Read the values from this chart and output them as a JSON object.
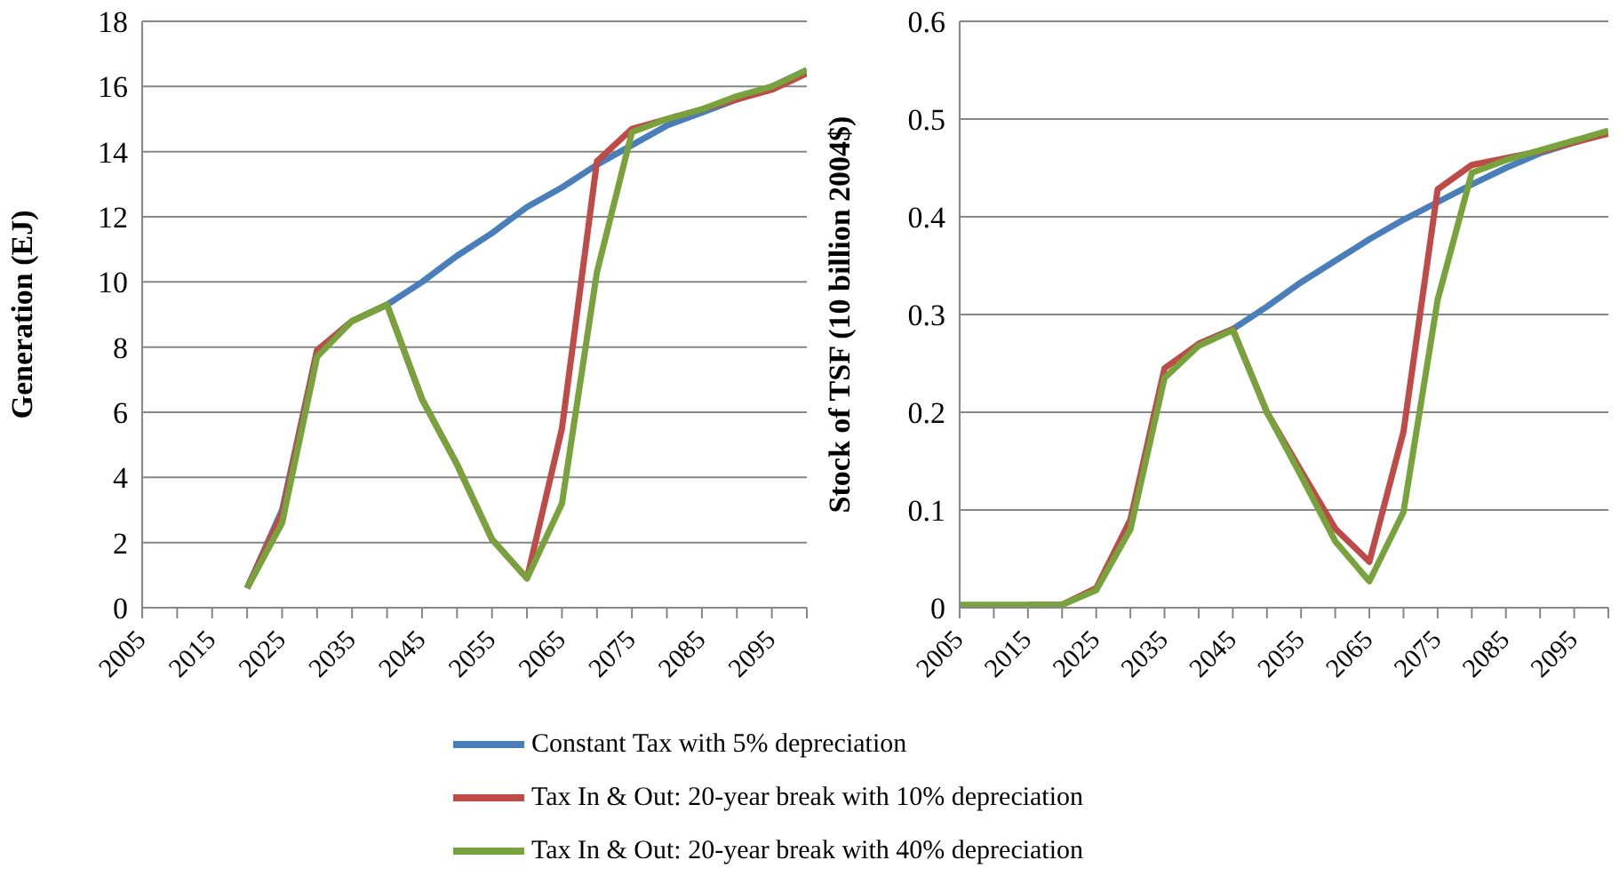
{
  "chart_data": [
    {
      "type": "line",
      "ylabel": "Generation (EJ)",
      "xlim": [
        2005,
        2100
      ],
      "xticks": [
        2005,
        {
          "value": 2010,
          "label": null
        },
        2015,
        {
          "value": 2020,
          "label": null
        },
        2025,
        {
          "value": 2030,
          "label": null
        },
        2035,
        {
          "value": 2040,
          "label": null
        },
        2045,
        {
          "value": 2050,
          "label": null
        },
        2055,
        {
          "value": 2060,
          "label": null
        },
        2065,
        {
          "value": 2070,
          "label": null
        },
        2075,
        {
          "value": 2080,
          "label": null
        },
        2085,
        {
          "value": 2090,
          "label": null
        },
        2095,
        {
          "value": 2100,
          "label": null
        }
      ],
      "ylim": [
        0,
        18
      ],
      "yticks": [
        0,
        2,
        4,
        6,
        8,
        10,
        12,
        14,
        16,
        18
      ],
      "grid": "y",
      "legend": "bottom",
      "marker": "none",
      "line_style": "solid",
      "x": [
        2020,
        2025,
        2030,
        2035,
        2040,
        2045,
        2050,
        2055,
        2060,
        2065,
        2070,
        2075,
        2080,
        2085,
        2090,
        2095,
        2100
      ],
      "series": [
        {
          "name": "Constant Tax with 5% depreciation",
          "color": "#4a7ebb",
          "values": [
            0.6,
            3.0,
            7.9,
            8.8,
            9.3,
            10.0,
            10.8,
            11.5,
            12.3,
            12.9,
            13.6,
            14.2,
            14.8,
            15.2,
            15.6,
            16.0,
            16.5
          ]
        },
        {
          "name": "Tax In & Out: 20-year break with 10% depreciation",
          "color": "#be4b48",
          "values": [
            0.6,
            2.9,
            7.9,
            8.8,
            9.3,
            6.4,
            4.4,
            2.1,
            0.9,
            5.5,
            13.7,
            14.7,
            15.0,
            15.3,
            15.6,
            15.9,
            16.4
          ]
        },
        {
          "name": "Tax In & Out: 20-year break with 40% depreciation",
          "color": "#77a23c",
          "values": [
            0.6,
            2.6,
            7.7,
            8.8,
            9.3,
            6.4,
            4.4,
            2.1,
            0.9,
            3.2,
            10.3,
            14.6,
            15.0,
            15.3,
            15.7,
            16.0,
            16.5
          ]
        }
      ]
    },
    {
      "type": "line",
      "ylabel": "Stock of TSF (10 billion 2004$)",
      "xlim": [
        2005,
        2100
      ],
      "xticks": [
        2005,
        {
          "value": 2010,
          "label": null
        },
        2015,
        {
          "value": 2020,
          "label": null
        },
        2025,
        {
          "value": 2030,
          "label": null
        },
        2035,
        {
          "value": 2040,
          "label": null
        },
        2045,
        {
          "value": 2050,
          "label": null
        },
        2055,
        {
          "value": 2060,
          "label": null
        },
        2065,
        {
          "value": 2070,
          "label": null
        },
        2075,
        {
          "value": 2080,
          "label": null
        },
        2085,
        {
          "value": 2090,
          "label": null
        },
        2095,
        {
          "value": 2100,
          "label": null
        }
      ],
      "ylim": [
        0,
        0.6
      ],
      "yticks": [
        0,
        0.1,
        0.2,
        0.3,
        0.4,
        0.5,
        0.6
      ],
      "grid": "y",
      "marker": "none",
      "line_style": "solid",
      "x": [
        2005,
        2010,
        2015,
        2020,
        2025,
        2030,
        2035,
        2040,
        2045,
        2050,
        2055,
        2060,
        2065,
        2070,
        2075,
        2080,
        2085,
        2090,
        2095,
        2100
      ],
      "series": [
        {
          "color": "#4a7ebb",
          "values": [
            null,
            null,
            null,
            null,
            null,
            null,
            null,
            0.27,
            0.285,
            0.308,
            0.333,
            0.355,
            0.377,
            0.397,
            0.415,
            0.433,
            0.45,
            0.465,
            0.476,
            0.487
          ]
        },
        {
          "color": "#be4b48",
          "values": [
            null,
            null,
            0.003,
            0.003,
            0.02,
            0.09,
            0.245,
            0.27,
            0.285,
            0.2,
            0.14,
            0.081,
            0.047,
            0.18,
            0.428,
            0.453,
            0.46,
            0.467,
            0.476,
            0.485
          ]
        },
        {
          "color": "#77a23c",
          "values": [
            0.003,
            0.003,
            0.003,
            0.003,
            0.018,
            0.08,
            0.235,
            0.268,
            0.284,
            0.2,
            0.135,
            0.068,
            0.027,
            0.098,
            0.315,
            0.445,
            0.458,
            0.468,
            0.478,
            0.488
          ]
        }
      ]
    }
  ]
}
